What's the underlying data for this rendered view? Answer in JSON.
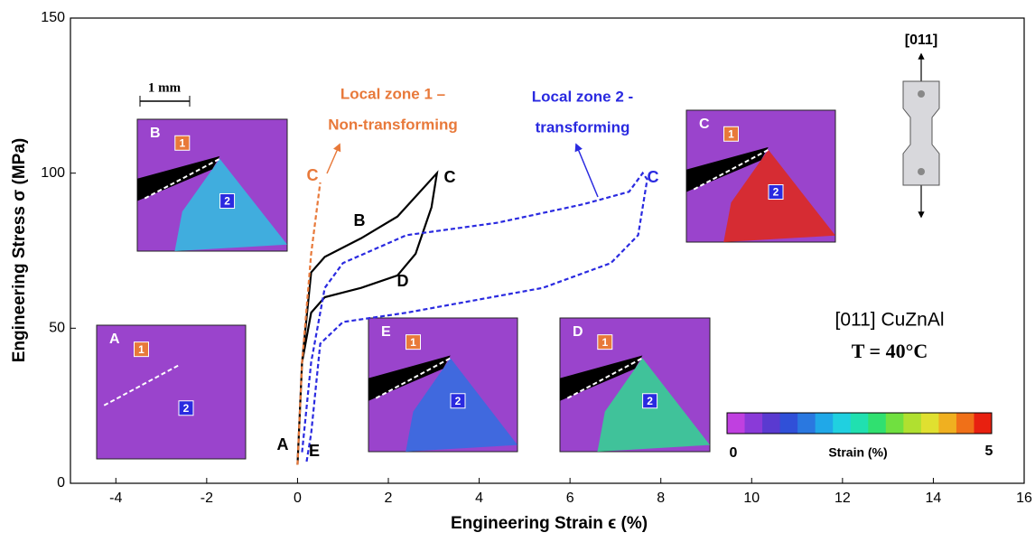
{
  "chart_data": {
    "type": "line",
    "x_label": "Engineering Strain ϵ (%)",
    "y_label": "Engineering Stress σ (MPa)",
    "xlim": [
      -5,
      16
    ],
    "ylim": [
      0,
      150
    ],
    "xticks": [
      -4,
      -2,
      0,
      2,
      4,
      6,
      8,
      10,
      12,
      14,
      16
    ],
    "yticks": [
      0,
      50,
      100,
      150
    ],
    "series": [
      {
        "color": "#000000",
        "dash": false,
        "x": [
          0,
          0.1,
          0.3,
          0.6,
          1.4,
          2.2,
          3.07,
          2.95,
          2.6,
          2.2,
          1.4,
          0.6,
          0.3,
          0.1,
          0
        ],
        "values": [
          6,
          39,
          68,
          73,
          79,
          86,
          100,
          89,
          74,
          67,
          63,
          60,
          55,
          39,
          6
        ]
      },
      {
        "color": "#2a2ae0",
        "dash": true,
        "x": [
          0.1,
          0.3,
          0.6,
          1,
          2.4,
          4.4,
          6.3,
          7.3,
          7.6,
          7.7,
          7.5,
          6.9,
          5.4,
          2.4,
          1,
          0.5,
          0.3,
          0.2
        ],
        "values": [
          10,
          39,
          63,
          71,
          80,
          84,
          90,
          94,
          100,
          98,
          80,
          71,
          63,
          55,
          52,
          45,
          16,
          7
        ]
      },
      {
        "color": "#e8793a",
        "dash": true,
        "x": [
          0,
          0.1,
          0.3,
          0.5
        ],
        "values": [
          6,
          39,
          74,
          97
        ]
      }
    ],
    "point_labels": [
      "A",
      "E",
      "B",
      "C",
      "D",
      "C",
      "C"
    ],
    "annotations": [
      {
        "lines": [
          "Local zone 1 –",
          "Non-transforming"
        ],
        "color": "#e8793a"
      },
      {
        "lines": [
          "Local zone 2 -",
          "transforming"
        ],
        "color": "#2a2ae0"
      }
    ],
    "material": "[011] CuZnAl",
    "temperature": "T = 40°C",
    "direction": "[011]",
    "scale_bar": "1 mm",
    "insets": [
      {
        "label": "B",
        "zones": [
          "1",
          "2"
        ]
      },
      {
        "label": "A",
        "zones": [
          "1",
          "2"
        ]
      },
      {
        "label": "E",
        "zones": [
          "1",
          "2"
        ]
      },
      {
        "label": "D",
        "zones": [
          "1",
          "2"
        ]
      },
      {
        "label": "C",
        "zones": [
          "1",
          "2"
        ]
      }
    ],
    "colorbar": {
      "label": "Strain (%)",
      "min": 0,
      "max": 5,
      "colors": [
        "#c040e0",
        "#8a3ad8",
        "#5a3ad0",
        "#3050d8",
        "#2a78e0",
        "#20a8e8",
        "#20d0e0",
        "#20e0b0",
        "#30e070",
        "#70e040",
        "#b0e030",
        "#e0e030",
        "#f0b020",
        "#f07018",
        "#e82010"
      ]
    }
  }
}
